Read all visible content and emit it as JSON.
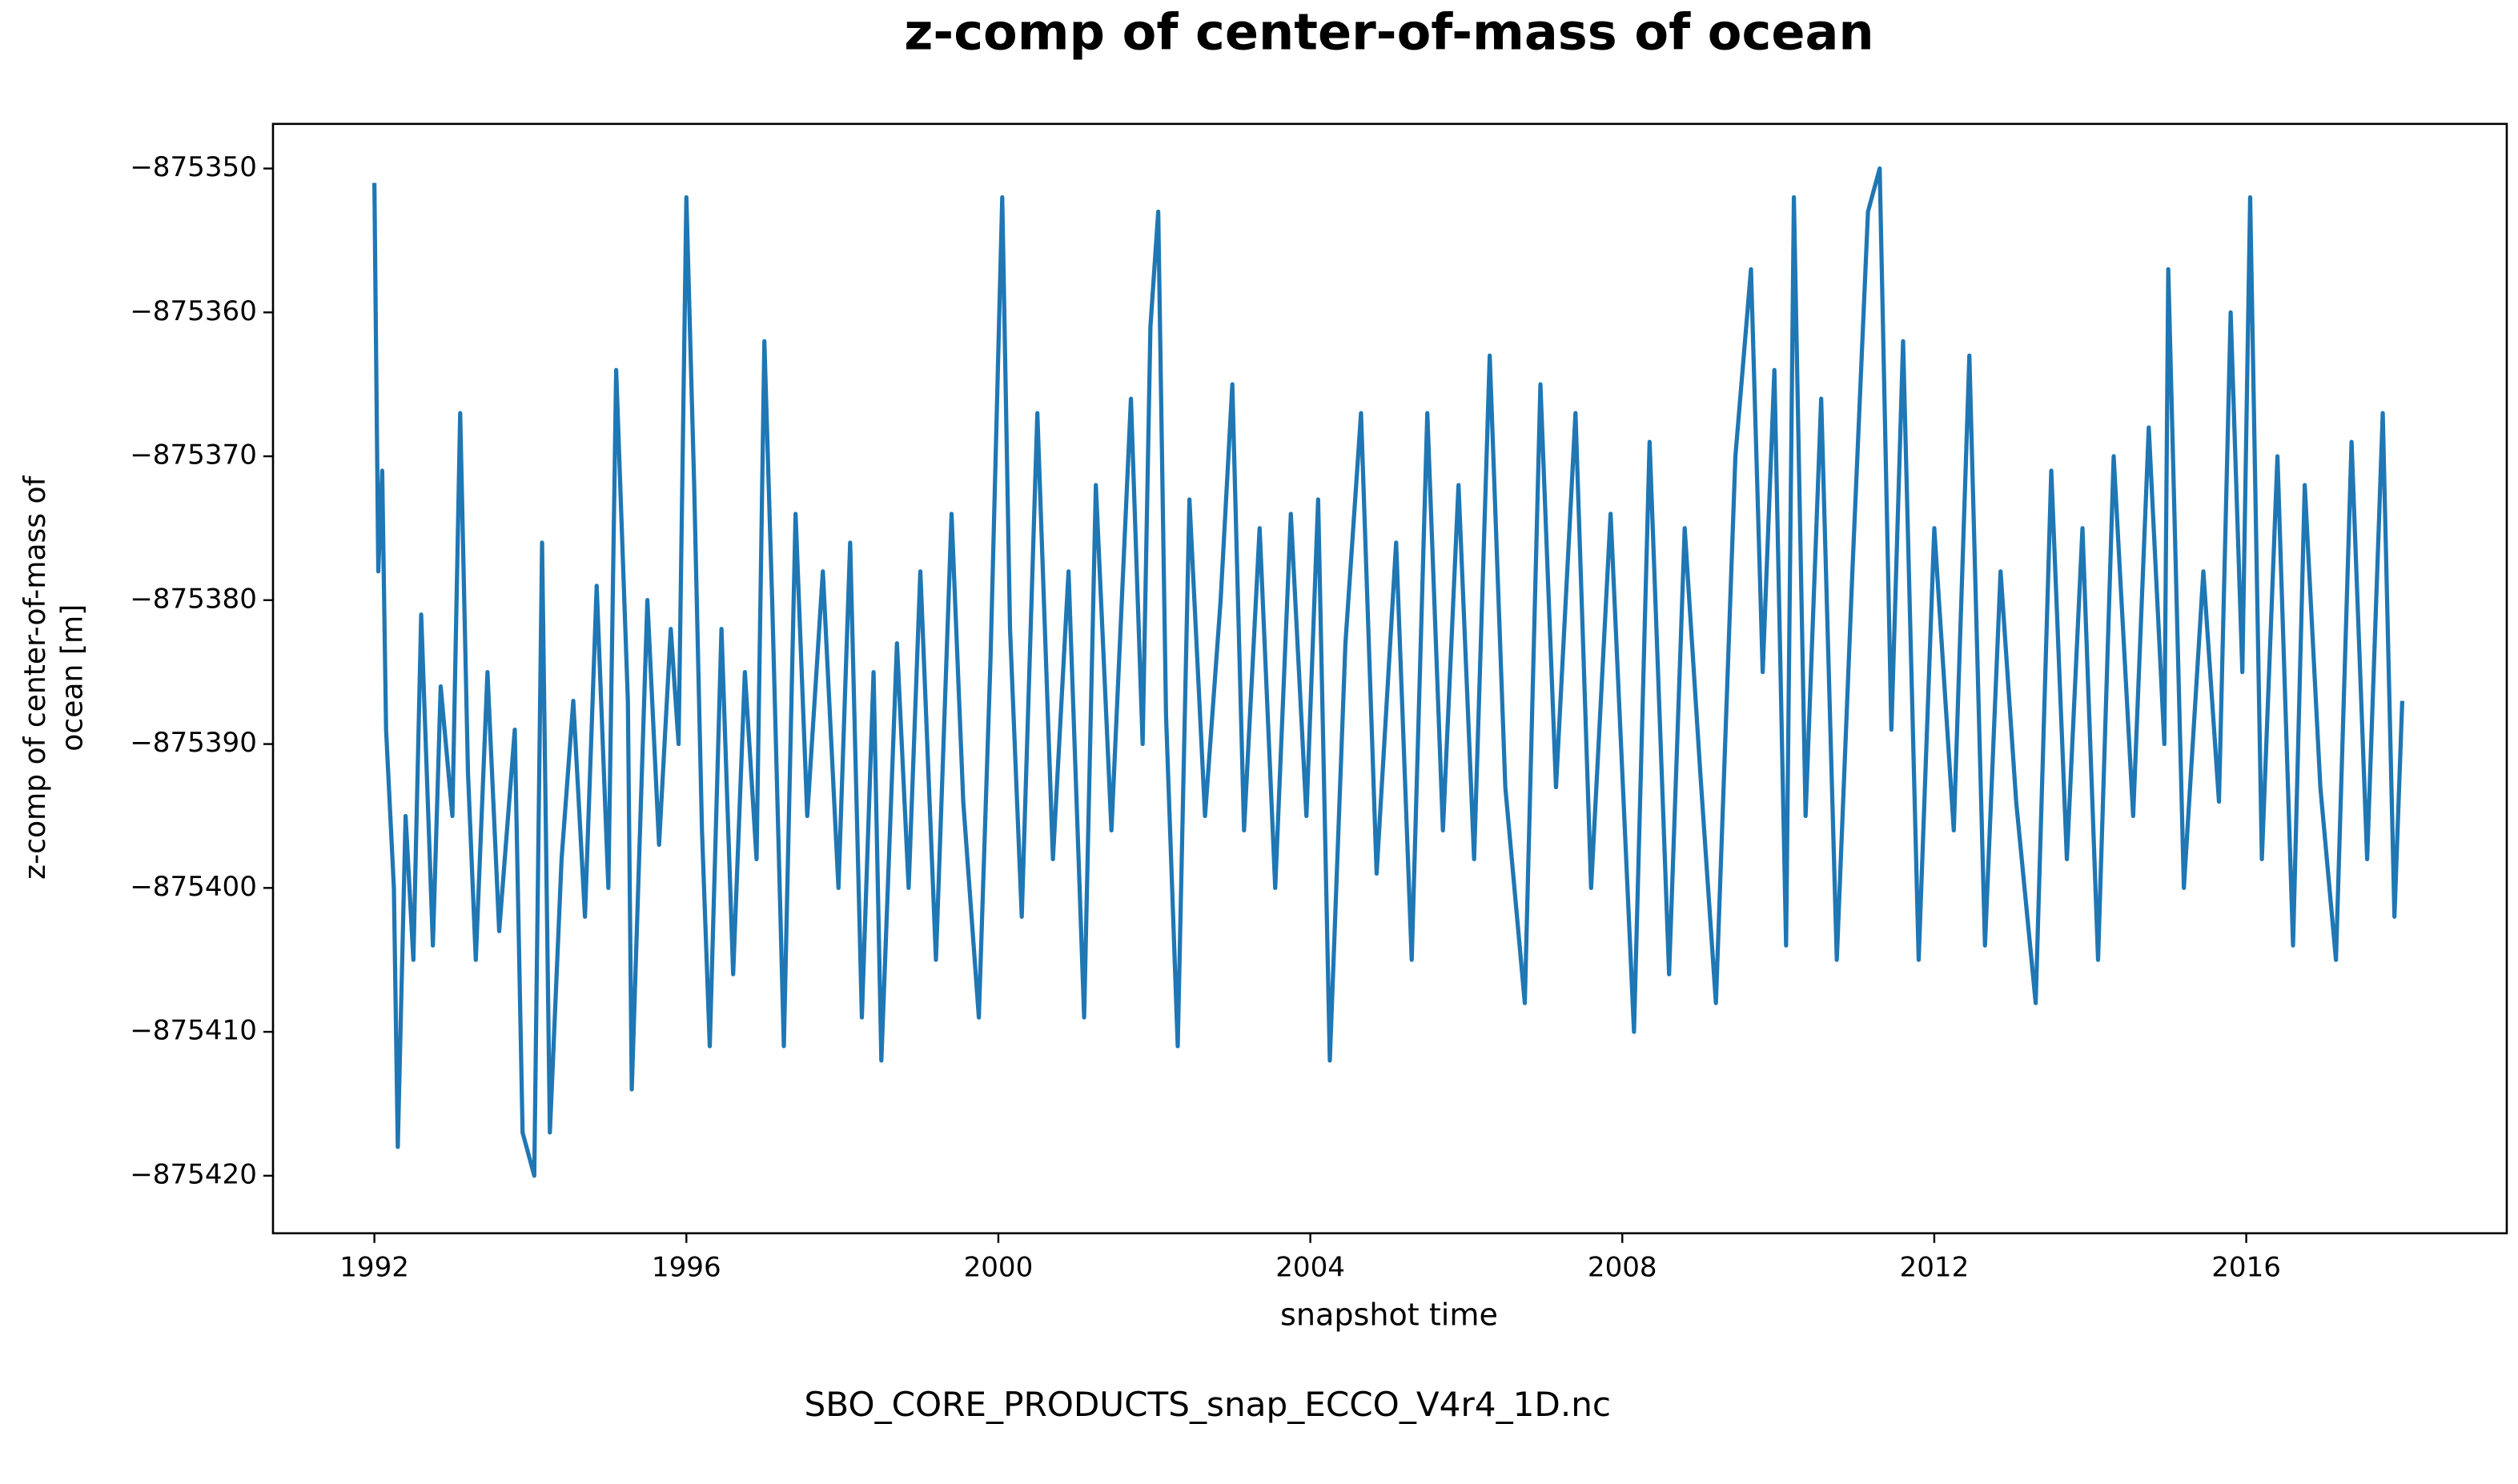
{
  "chart_data": {
    "type": "line",
    "title": "z-comp of center-of-mass of ocean",
    "xlabel": "snapshot time",
    "ylabel": [
      "z-comp of center-of-mass of",
      "ocean [m]"
    ],
    "caption": "SBO_CORE_PRODUCTS_snap_ECCO_V4r4_1D.nc",
    "xlim": [
      1990.7,
      2019.34
    ],
    "ylim": [
      -875424.0,
      -875346.9
    ],
    "xticks": [
      1992,
      1996,
      2000,
      2004,
      2008,
      2012,
      2016
    ],
    "yticks": [
      {
        "value": -875350,
        "label": "−875350"
      },
      {
        "value": -875360,
        "label": "−875360"
      },
      {
        "value": -875370,
        "label": "−875370"
      },
      {
        "value": -875380,
        "label": "−875380"
      },
      {
        "value": -875390,
        "label": "−875390"
      },
      {
        "value": -875400,
        "label": "−875400"
      },
      {
        "value": -875410,
        "label": "−875410"
      },
      {
        "value": -875420,
        "label": "−875420"
      }
    ],
    "grid": false,
    "x": [
      1992.0,
      1992.05,
      1992.1,
      1992.15,
      1992.25,
      1992.3,
      1992.4,
      1992.5,
      1992.6,
      1992.75,
      1992.85,
      1993.0,
      1993.1,
      1993.2,
      1993.3,
      1993.45,
      1993.6,
      1993.8,
      1993.9,
      1994.05,
      1994.15,
      1994.25,
      1994.4,
      1994.55,
      1994.7,
      1994.85,
      1995.0,
      1995.1,
      1995.25,
      1995.3,
      1995.5,
      1995.65,
      1995.8,
      1995.9,
      1996.0,
      1996.1,
      1996.2,
      1996.3,
      1996.45,
      1996.6,
      1996.75,
      1996.9,
      1997.0,
      1997.1,
      1997.25,
      1997.4,
      1997.55,
      1997.75,
      1997.95,
      1998.1,
      1998.25,
      1998.4,
      1998.5,
      1998.7,
      1998.85,
      1999.0,
      1999.2,
      1999.4,
      1999.55,
      1999.75,
      1999.9,
      2000.05,
      2000.15,
      2000.3,
      2000.5,
      2000.7,
      2000.9,
      2001.1,
      2001.25,
      2001.45,
      2001.7,
      2001.85,
      2001.95,
      2002.05,
      2002.15,
      2002.3,
      2002.45,
      2002.65,
      2002.85,
      2003.0,
      2003.15,
      2003.35,
      2003.55,
      2003.75,
      2003.95,
      2004.1,
      2004.25,
      2004.45,
      2004.65,
      2004.85,
      2005.1,
      2005.3,
      2005.5,
      2005.7,
      2005.9,
      2006.1,
      2006.3,
      2006.5,
      2006.75,
      2006.95,
      2007.15,
      2007.4,
      2007.6,
      2007.85,
      2008.05,
      2008.15,
      2008.35,
      2008.6,
      2008.8,
      2009.0,
      2009.2,
      2009.45,
      2009.65,
      2009.8,
      2009.95,
      2010.1,
      2010.2,
      2010.35,
      2010.55,
      2010.75,
      2010.95,
      2011.15,
      2011.3,
      2011.45,
      2011.6,
      2011.8,
      2012.0,
      2012.25,
      2012.45,
      2012.65,
      2012.85,
      2013.05,
      2013.3,
      2013.5,
      2013.7,
      2013.9,
      2014.1,
      2014.3,
      2014.55,
      2014.75,
      2014.95,
      2015.0,
      2015.2,
      2015.45,
      2015.65,
      2015.8,
      2015.95,
      2016.05,
      2016.2,
      2016.4,
      2016.6,
      2016.75,
      2016.95,
      2017.15,
      2017.35,
      2017.55,
      2017.75,
      2017.9,
      2018.0
    ],
    "series": [
      {
        "name": "z-comp of center-of-mass of ocean",
        "color": "#1f77b4",
        "values": [
          -875351,
          -875378,
          -875371,
          -875389,
          -875400,
          -875418,
          -875395,
          -875405,
          -875381,
          -875404,
          -875386,
          -875395,
          -875367,
          -875392,
          -875405,
          -875385,
          -875403,
          -875389,
          -875417,
          -875420,
          -875376,
          -875417,
          -875398,
          -875387,
          -875402,
          -875379,
          -875400,
          -875364,
          -875387,
          -875414,
          -875380,
          -875397,
          -875382,
          -875390,
          -875352,
          -875372,
          -875396,
          -875411,
          -875382,
          -875406,
          -875385,
          -875398,
          -875362,
          -875380,
          -875411,
          -875374,
          -875395,
          -875378,
          -875400,
          -875376,
          -875409,
          -875385,
          -875412,
          -875383,
          -875400,
          -875378,
          -875405,
          -875374,
          -875394,
          -875409,
          -875384,
          -875352,
          -875382,
          -875402,
          -875367,
          -875398,
          -875378,
          -875409,
          -875372,
          -875396,
          -875366,
          -875390,
          -875361,
          -875353,
          -875388,
          -875411,
          -875373,
          -875395,
          -875380,
          -875365,
          -875396,
          -875375,
          -875400,
          -875374,
          -875395,
          -875373,
          -875412,
          -875383,
          -875367,
          -875399,
          -875376,
          -875405,
          -875367,
          -875396,
          -875372,
          -875398,
          -875363,
          -875393,
          -875408,
          -875365,
          -875393,
          -875367,
          -875400,
          -875374,
          -875398,
          -875410,
          -875369,
          -875406,
          -875375,
          -875392,
          -875408,
          -875370,
          -875357,
          -875385,
          -875364,
          -875404,
          -875352,
          -875395,
          -875366,
          -875405,
          -875378,
          -875353,
          -875350,
          -875389,
          -875362,
          -875405,
          -875375,
          -875396,
          -875363,
          -875404,
          -875378,
          -875394,
          -875408,
          -875371,
          -875398,
          -875375,
          -875405,
          -875370,
          -875395,
          -875368,
          -875390,
          -875357,
          -875400,
          -875378,
          -875394,
          -875360,
          -875385,
          -875352,
          -875398,
          -875370,
          -875404,
          -875372,
          -875393,
          -875405,
          -875369,
          -875398,
          -875367,
          -875402,
          -875387
        ]
      }
    ]
  }
}
